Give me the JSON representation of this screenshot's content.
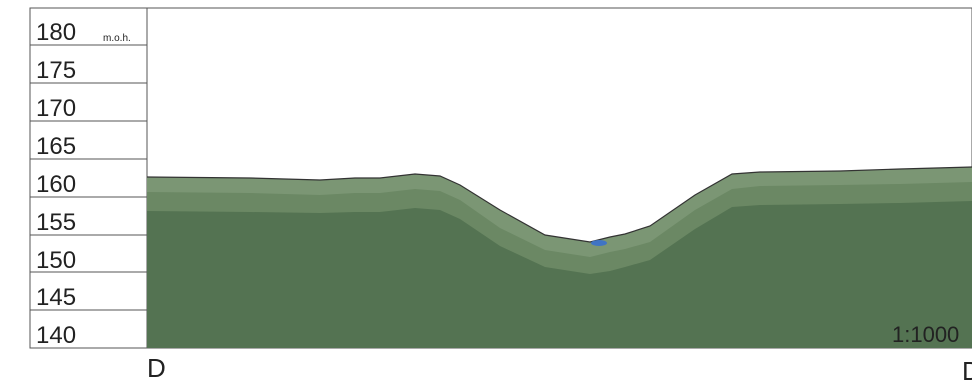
{
  "profile": {
    "unit": "m.o.h.",
    "scale": "1:1000",
    "section_start": "D",
    "section_end": "D",
    "elevation_labels": [
      "180",
      "175",
      "170",
      "165",
      "160",
      "155",
      "150",
      "145",
      "140"
    ],
    "colors": {
      "terrain_top_layer": "#7b9674",
      "terrain_mid_layer": "#6b8864",
      "terrain_body": "#547352",
      "surface_line": "#333333",
      "water": "#3f74c4",
      "grid": "#555555"
    }
  }
}
